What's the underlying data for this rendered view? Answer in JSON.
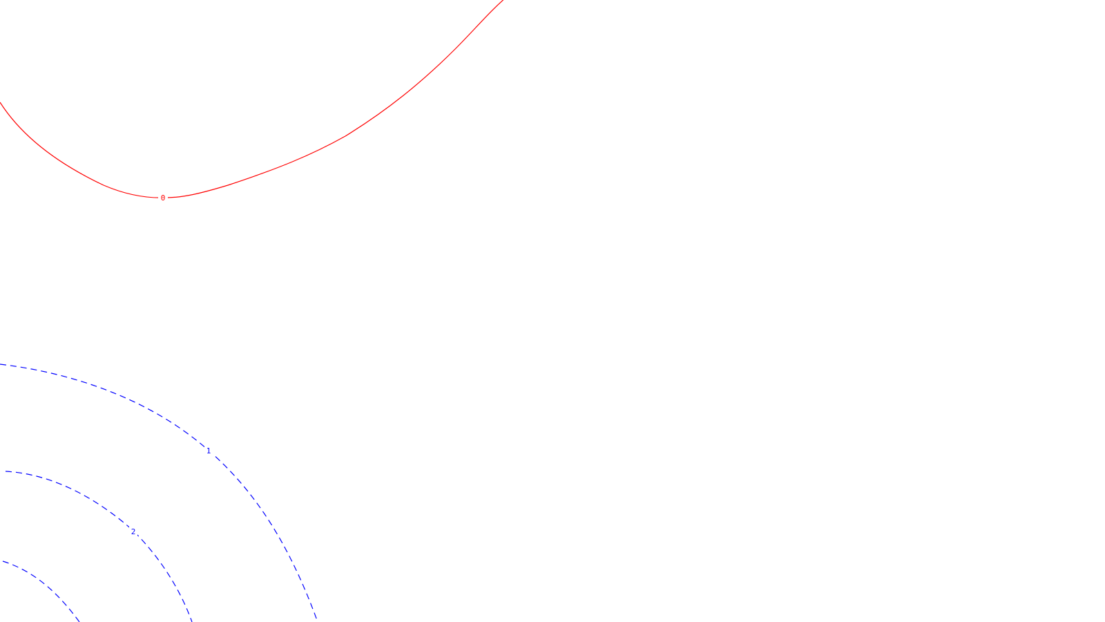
{
  "contours": [
    {
      "id": "zero",
      "label": "0",
      "color": "#ff0000",
      "style": "solid"
    },
    {
      "id": "one",
      "label": "1",
      "color": "#0000ff",
      "style": "dashed"
    },
    {
      "id": "two",
      "label": "2",
      "color": "#0000ff",
      "style": "dashed"
    },
    {
      "id": "three",
      "label": "",
      "color": "#0000ff",
      "style": "dashed"
    }
  ]
}
